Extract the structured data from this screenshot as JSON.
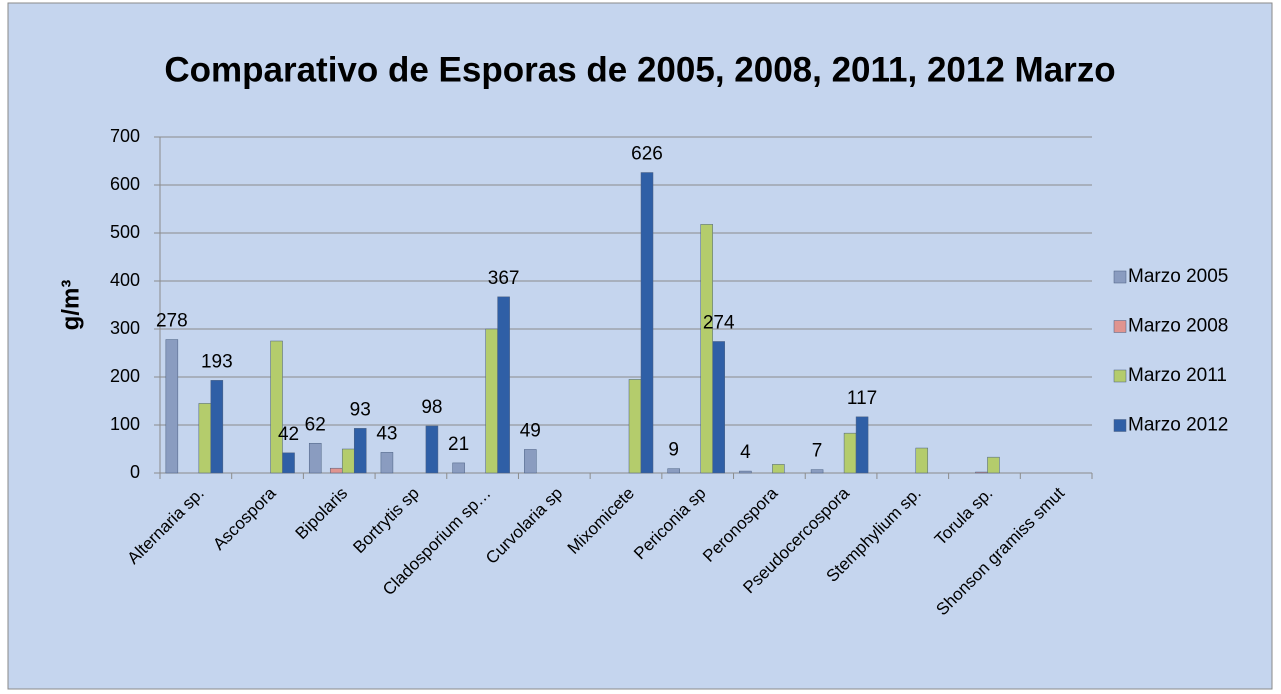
{
  "chart_data": {
    "type": "bar",
    "title": "Comparativo de Esporas de 2005, 2008, 2011, 2012 Marzo",
    "ylabel": "g/m³",
    "categories": [
      "Alternaria sp.",
      "Ascospora",
      "Bipolaris",
      "Bortrytis sp",
      "Cladosporium sp…",
      "Curvolaria sp",
      "Mixomicete",
      "Periconia sp",
      "Peronospora",
      "Pseudocercospora",
      "Stemphylium sp.",
      "Torula sp.",
      "Shonson gramiss smut"
    ],
    "series": [
      {
        "name": "Marzo 2005",
        "color": "#8a9cc0",
        "show_labels": true,
        "values": [
          278,
          null,
          62,
          43,
          21,
          49,
          null,
          9,
          4,
          7,
          null,
          null,
          null
        ]
      },
      {
        "name": "Marzo 2008",
        "color": "#e0948f",
        "show_labels": false,
        "values": [
          null,
          null,
          10,
          null,
          null,
          null,
          null,
          null,
          null,
          null,
          null,
          2,
          null
        ]
      },
      {
        "name": "Marzo 2011",
        "color": "#b4cc6c",
        "show_labels": false,
        "values": [
          145,
          275,
          50,
          null,
          300,
          null,
          195,
          518,
          18,
          83,
          52,
          33,
          null
        ]
      },
      {
        "name": "Marzo 2012",
        "color": "#2f5fa6",
        "show_labels": true,
        "values": [
          193,
          42,
          93,
          98,
          367,
          null,
          626,
          274,
          null,
          117,
          null,
          null,
          null
        ]
      }
    ],
    "ylim": [
      0,
      700
    ],
    "yticks": [
      0,
      100,
      200,
      300,
      400,
      500,
      600,
      700
    ],
    "grid": true,
    "legend": "right"
  }
}
